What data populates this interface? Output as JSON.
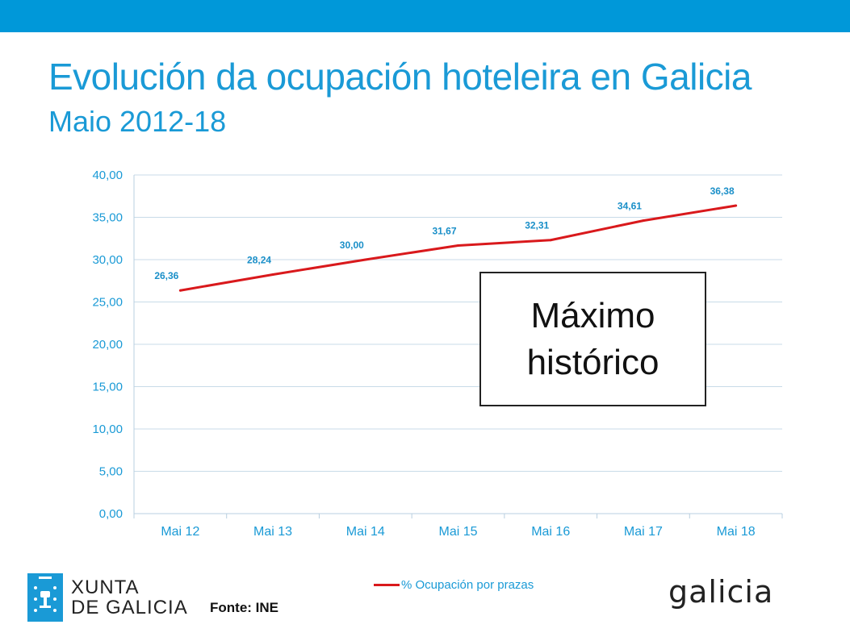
{
  "header": {
    "title": "Evolución da ocupación hoteleira en Galicia",
    "subtitle": "Maio 2012-18"
  },
  "chart_data": {
    "type": "line",
    "categories": [
      "Mai 12",
      "Mai 13",
      "Mai 14",
      "Mai 15",
      "Mai 16",
      "Mai 17",
      "Mai 18"
    ],
    "series": [
      {
        "name": "% Ocupación por prazas",
        "values": [
          26.36,
          28.24,
          30.0,
          31.67,
          32.31,
          34.61,
          36.38
        ],
        "labels": [
          "26,36",
          "28,24",
          "30,00",
          "31,67",
          "32,31",
          "34,61",
          "36,38"
        ],
        "color": "#d9191c"
      }
    ],
    "yticks": [
      0,
      5,
      10,
      15,
      20,
      25,
      30,
      35,
      40
    ],
    "ytick_labels": [
      "0,00",
      "5,00",
      "10,00",
      "15,00",
      "20,00",
      "25,00",
      "30,00",
      "35,00",
      "40,00"
    ],
    "ylim": [
      0,
      40
    ],
    "grid": true,
    "legend": "bottom",
    "colors": {
      "axis_text": "#1a9ad6",
      "label_text": "#1a8fc8",
      "grid": "#c8dbe8"
    }
  },
  "callout": {
    "text": "Máximo\nhistórico"
  },
  "legend": {
    "label": "% Ocupación por prazas"
  },
  "footer": {
    "source": "Fonte: INE",
    "logo_left": "XUNTA\nDE GALICIA",
    "logo_right": "galicia"
  },
  "colors": {
    "topbar": "#0098d9",
    "title": "#1a9ad6"
  }
}
